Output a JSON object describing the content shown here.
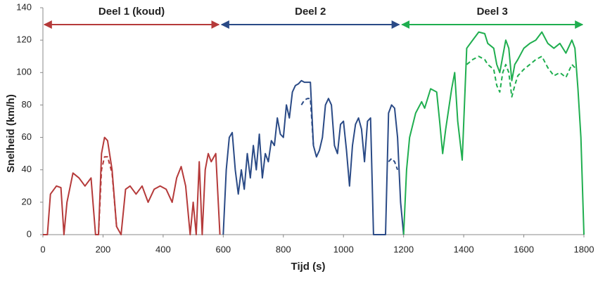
{
  "chart_data": {
    "type": "line",
    "x_label": "Tijd (s)",
    "y_label": "Snelheid (km/h)",
    "xlim": [
      0,
      1800
    ],
    "xticks": [
      0,
      200,
      400,
      600,
      800,
      1000,
      1200,
      1400,
      1600,
      1800
    ],
    "ylim": [
      0,
      140
    ],
    "yticks": [
      0,
      20,
      40,
      60,
      80,
      100,
      120,
      140
    ],
    "grid": false,
    "sections": [
      {
        "label": "Deel 1 (koud)",
        "start": 0,
        "end": 590,
        "color": "#b53a3a",
        "text_color": "#e03030"
      },
      {
        "label": "Deel 2",
        "start": 590,
        "end": 1190,
        "color": "#2a4a86",
        "text_color": "#2c3e8c"
      },
      {
        "label": "Deel 3",
        "start": 1190,
        "end": 1800,
        "color": "#1fae4f",
        "text_color": "#22b14c"
      }
    ],
    "series": [
      {
        "color": "#b53a3a",
        "dashed": false,
        "x": [
          0,
          15,
          25,
          45,
          60,
          70,
          80,
          100,
          120,
          140,
          160,
          175,
          185,
          195,
          205,
          215,
          230,
          245,
          260,
          275,
          290,
          310,
          330,
          350,
          370,
          390,
          410,
          430,
          445,
          460,
          475,
          490,
          500,
          510,
          520,
          530,
          540,
          550,
          560,
          575,
          589
        ],
        "values": [
          0,
          0,
          25,
          30,
          29,
          0,
          20,
          38,
          35,
          30,
          35,
          0,
          0,
          50,
          60,
          58,
          40,
          5,
          0,
          28,
          30,
          25,
          30,
          20,
          28,
          30,
          28,
          20,
          35,
          42,
          30,
          0,
          20,
          0,
          45,
          0,
          40,
          50,
          45,
          50,
          0
        ]
      },
      {
        "color": "#b53a3a",
        "dashed": true,
        "x": [
          185,
          195,
          205,
          215,
          230,
          245
        ],
        "values": [
          0,
          40,
          48,
          48,
          38,
          5
        ]
      },
      {
        "color": "#2a4a86",
        "dashed": false,
        "x": [
          600,
          610,
          620,
          630,
          640,
          650,
          660,
          670,
          680,
          690,
          700,
          710,
          720,
          730,
          740,
          750,
          760,
          770,
          780,
          790,
          800,
          810,
          820,
          830,
          840,
          850,
          860,
          870,
          880,
          890,
          900,
          910,
          920,
          930,
          940,
          950,
          960,
          970,
          980,
          990,
          1000,
          1010,
          1020,
          1030,
          1040,
          1050,
          1060,
          1070,
          1080,
          1090,
          1100,
          1110,
          1120,
          1130,
          1140,
          1150,
          1160,
          1170,
          1180,
          1190,
          1200
        ],
        "values": [
          0,
          40,
          60,
          63,
          40,
          25,
          40,
          28,
          50,
          35,
          55,
          40,
          62,
          35,
          50,
          45,
          58,
          55,
          72,
          62,
          60,
          80,
          72,
          88,
          92,
          93,
          95,
          94,
          94,
          94,
          55,
          48,
          52,
          60,
          80,
          84,
          80,
          55,
          50,
          68,
          70,
          52,
          30,
          55,
          68,
          72,
          65,
          45,
          70,
          72,
          0,
          0,
          0,
          0,
          0,
          75,
          80,
          78,
          60,
          20,
          0
        ]
      },
      {
        "color": "#2a4a86",
        "dashed": true,
        "x": [
          860,
          870,
          880,
          890,
          900
        ],
        "values": [
          80,
          83,
          84,
          84,
          55
        ]
      },
      {
        "color": "#2a4a86",
        "dashed": true,
        "x": [
          1150,
          1160,
          1170,
          1180
        ],
        "values": [
          45,
          47,
          45,
          40
        ]
      },
      {
        "color": "#1fae4f",
        "dashed": false,
        "x": [
          1200,
          1210,
          1220,
          1240,
          1260,
          1270,
          1290,
          1310,
          1320,
          1330,
          1340,
          1360,
          1370,
          1380,
          1395,
          1410,
          1430,
          1450,
          1470,
          1480,
          1500,
          1510,
          1520,
          1530,
          1540,
          1550,
          1560,
          1570,
          1580,
          1600,
          1620,
          1640,
          1660,
          1680,
          1700,
          1720,
          1740,
          1760,
          1770,
          1780,
          1790,
          1800
        ],
        "values": [
          0,
          40,
          60,
          75,
          82,
          78,
          90,
          88,
          70,
          50,
          65,
          90,
          100,
          70,
          46,
          115,
          120,
          125,
          124,
          118,
          115,
          105,
          100,
          110,
          120,
          115,
          95,
          105,
          108,
          115,
          118,
          120,
          125,
          118,
          115,
          118,
          112,
          120,
          115,
          90,
          60,
          0
        ]
      },
      {
        "color": "#1fae4f",
        "dashed": true,
        "x": [
          1410,
          1430,
          1450,
          1470,
          1480,
          1500,
          1510,
          1520,
          1530,
          1540,
          1550,
          1560,
          1570,
          1580,
          1600,
          1620,
          1640,
          1660,
          1680,
          1700,
          1720,
          1740,
          1760,
          1770
        ],
        "values": [
          105,
          108,
          110,
          108,
          105,
          102,
          92,
          88,
          100,
          105,
          100,
          85,
          92,
          98,
          102,
          105,
          108,
          110,
          103,
          98,
          100,
          97,
          105,
          103
        ]
      }
    ]
  }
}
